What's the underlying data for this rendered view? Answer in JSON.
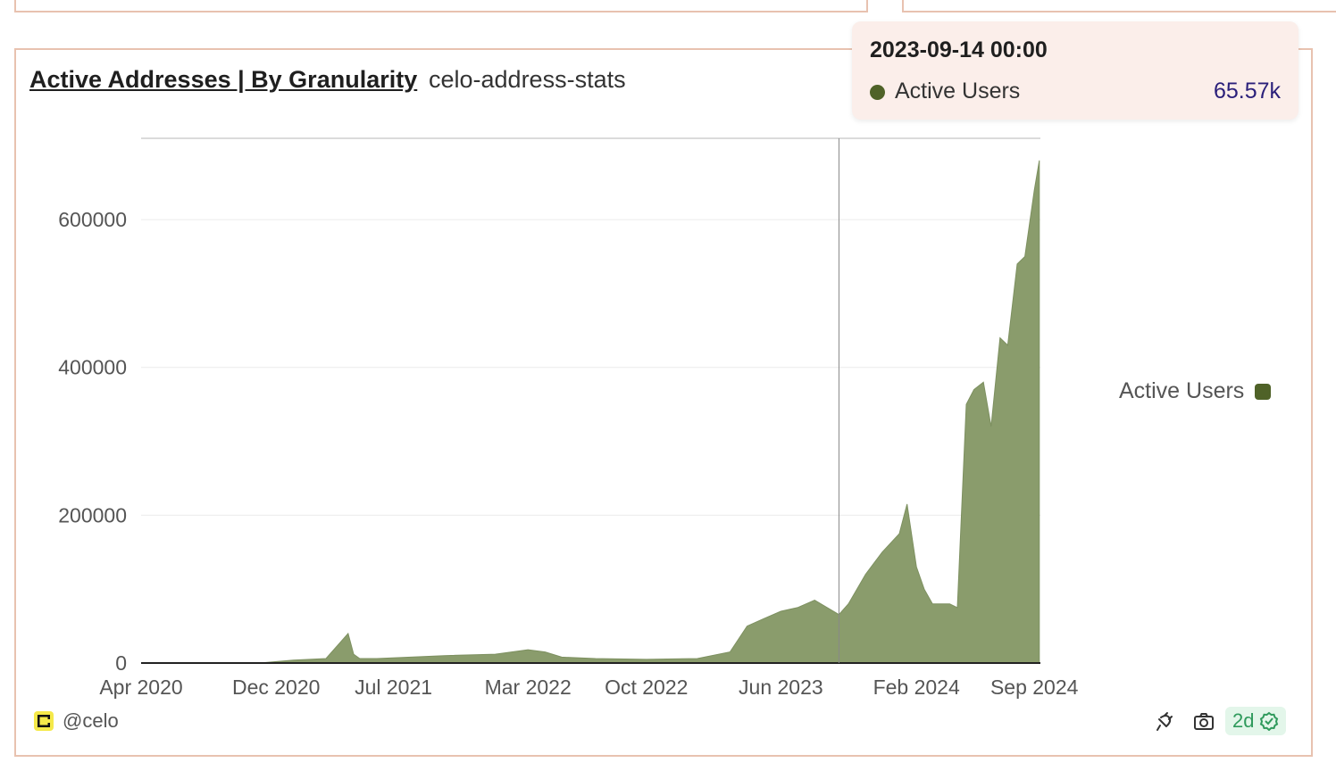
{
  "header": {
    "title": "Active Addresses | By Granularity",
    "subtitle": "celo-address-stats"
  },
  "tooltip": {
    "date": "2023-09-14 00:00",
    "series": "Active Users",
    "value": "65.57k"
  },
  "legend": {
    "label": "Active Users"
  },
  "footer": {
    "handle": "@celo",
    "age": "2d"
  },
  "icons": {
    "logo": "celo-logo-icon",
    "plug": "plug-icon",
    "camera": "camera-icon",
    "check": "check-badge-icon"
  },
  "colors": {
    "series": "#4f6228",
    "area": "#8a9c6c",
    "border": "#e8c2b0",
    "tooltip_bg": "#fbeeea"
  },
  "chart_data": {
    "type": "area",
    "title": "Active Addresses | By Granularity",
    "xlabel": "",
    "ylabel": "",
    "x_ticks": [
      "Apr 2020",
      "Dec 2020",
      "Jul 2021",
      "Mar 2022",
      "Oct 2022",
      "Jun 2023",
      "Feb 2024",
      "Sep 2024"
    ],
    "y_ticks": [
      0,
      200000,
      400000,
      600000
    ],
    "ylim": [
      0,
      710000
    ],
    "grid": true,
    "legend_position": "right",
    "series": [
      {
        "name": "Active Users",
        "x": [
          "2020-04-01",
          "2020-08-01",
          "2020-11-01",
          "2021-01-01",
          "2021-03-01",
          "2021-04-10",
          "2021-04-20",
          "2021-05-01",
          "2021-06-01",
          "2021-08-01",
          "2021-10-01",
          "2022-01-01",
          "2022-03-01",
          "2022-04-01",
          "2022-05-01",
          "2022-07-01",
          "2022-10-01",
          "2023-01-01",
          "2023-03-01",
          "2023-04-01",
          "2023-05-01",
          "2023-06-01",
          "2023-07-01",
          "2023-08-01",
          "2023-09-14",
          "2023-10-01",
          "2023-11-01",
          "2023-12-01",
          "2024-01-01",
          "2024-01-15",
          "2024-02-01",
          "2024-02-15",
          "2024-03-01",
          "2024-04-01",
          "2024-04-15",
          "2024-05-01",
          "2024-05-15",
          "2024-06-01",
          "2024-06-15",
          "2024-07-01",
          "2024-07-15",
          "2024-08-01",
          "2024-08-15",
          "2024-09-01",
          "2024-09-10"
        ],
        "values": [
          0,
          0,
          0,
          4000,
          6000,
          40000,
          12000,
          6000,
          6000,
          8000,
          10000,
          12000,
          18000,
          15000,
          8000,
          6000,
          5000,
          6000,
          15000,
          50000,
          60000,
          70000,
          75000,
          85000,
          65570,
          80000,
          120000,
          150000,
          175000,
          215000,
          130000,
          100000,
          80000,
          80000,
          75000,
          350000,
          370000,
          380000,
          320000,
          440000,
          430000,
          540000,
          550000,
          640000,
          680000
        ]
      }
    ]
  }
}
